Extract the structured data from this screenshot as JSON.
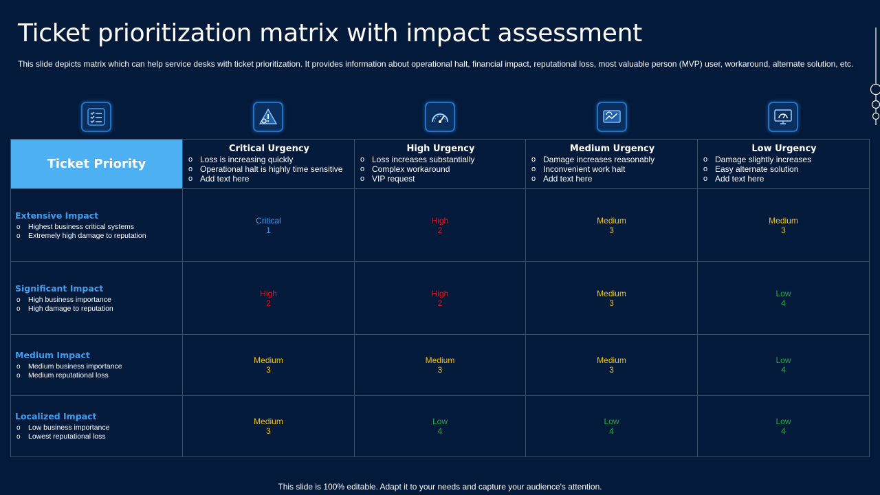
{
  "title": "Ticket prioritization matrix with impact assessment",
  "subtitle": "This slide depicts matrix which can help service desks with ticket prioritization. It provides information about operational halt, financial impact, reputational loss, most valuable person (MVP) user, workaround, alternate solution, etc.",
  "corner_label": "Ticket Priority",
  "icons": [
    "checklist-icon",
    "warning-gear-icon",
    "speedometer-icon",
    "dashboard-monitor-icon",
    "monitor-gauge-icon"
  ],
  "colors": {
    "background": "#041a3b",
    "corner": "#4db0f3",
    "critical": "#3d9ef0",
    "high": "#e8101a",
    "medium": "#f5c211",
    "low": "#1faa4d"
  },
  "urgency": [
    {
      "title": "Critical  Urgency",
      "bullets": [
        "Loss is increasing quickly",
        "Operational halt is highly time sensitive",
        "Add text here"
      ]
    },
    {
      "title": "High  Urgency",
      "bullets": [
        "Loss increases substantially",
        "Complex workaround",
        "VIP  request"
      ]
    },
    {
      "title": "Medium  Urgency",
      "bullets": [
        "Damage increases reasonably",
        "Inconvenient work halt",
        "Add text here"
      ]
    },
    {
      "title": "Low Urgency",
      "bullets": [
        "Damage slightly increases",
        "Easy alternate solution",
        "Add text here"
      ]
    }
  ],
  "impact": [
    {
      "title": "Extensive Impact",
      "bullets": [
        "Highest business critical systems",
        "Extremely high damage to reputation"
      ],
      "cells": [
        {
          "label": "Critical",
          "num": "1"
        },
        {
          "label": "High",
          "num": "2"
        },
        {
          "label": "Medium",
          "num": "3"
        },
        {
          "label": "Medium",
          "num": "3"
        }
      ]
    },
    {
      "title": "Significant Impact",
      "bullets": [
        "High business importance",
        "High damage to reputation"
      ],
      "cells": [
        {
          "label": "High",
          "num": "2"
        },
        {
          "label": "High",
          "num": "2"
        },
        {
          "label": "Medium",
          "num": "3"
        },
        {
          "label": "Low",
          "num": "4"
        }
      ]
    },
    {
      "title": "Medium Impact",
      "bullets": [
        "Medium business importance",
        "Medium reputational loss"
      ],
      "cells": [
        {
          "label": "Medium",
          "num": "3"
        },
        {
          "label": "Medium",
          "num": "3"
        },
        {
          "label": "Medium",
          "num": "3"
        },
        {
          "label": "Low",
          "num": "4"
        }
      ]
    },
    {
      "title": "Localized Impact",
      "bullets": [
        "Low business importance",
        "Lowest reputational loss"
      ],
      "cells": [
        {
          "label": "Medium",
          "num": "3"
        },
        {
          "label": "Low",
          "num": "4"
        },
        {
          "label": "Low",
          "num": "4"
        },
        {
          "label": "Low",
          "num": "4"
        }
      ]
    }
  ],
  "footer": "This slide is 100% editable. Adapt it to your needs and capture your audience's attention."
}
